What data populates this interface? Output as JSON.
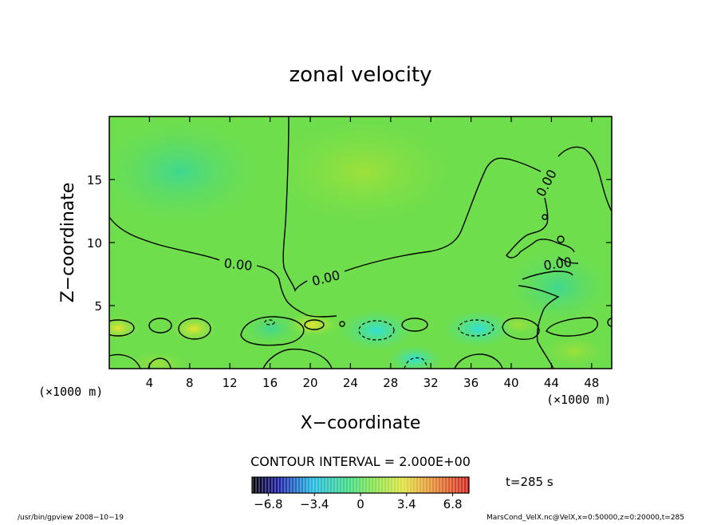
{
  "chart_data": {
    "type": "heatmap",
    "title": "zonal velocity",
    "xlabel": "X−coordinate",
    "ylabel": "Z−coordinate",
    "x_unit": "(×1000 m)",
    "y_unit": "(×1000 m)",
    "xlim": [
      0,
      50
    ],
    "ylim": [
      0,
      20
    ],
    "x_ticks": [
      4,
      8,
      12,
      16,
      20,
      24,
      28,
      32,
      36,
      40,
      44,
      48
    ],
    "y_ticks": [
      5,
      10,
      15
    ],
    "contour_interval_label": "CONTOUR INTERVAL = 2.000E+00",
    "contour_labels": [
      "0.00",
      "0.00",
      "0.00",
      "0.00"
    ],
    "time_label": "t=285 s",
    "colorbar": {
      "range": [
        -8,
        8
      ],
      "tick_values": [
        -6.8,
        -3.4,
        0,
        3.4,
        6.8
      ],
      "tick_labels": [
        "−6.8",
        "−3.4",
        "0",
        "3.4",
        "6.8"
      ]
    },
    "field_samples": [
      {
        "x": 2,
        "z": 3,
        "value": 1.5
      },
      {
        "x": 8,
        "z": 3,
        "value": 1.2
      },
      {
        "x": 26,
        "z": 3,
        "value": -2.2
      },
      {
        "x": 36,
        "z": 3,
        "value": -2.0
      },
      {
        "x": 30,
        "z": 0.5,
        "value": -2.0
      },
      {
        "x": 24,
        "z": 15,
        "value": 0.8
      },
      {
        "x": 8,
        "z": 15,
        "value": -0.8
      }
    ]
  },
  "footer": {
    "left": "/usr/bin/gpview   2008−10−19",
    "right": "MarsCond_VelX.nc@VelX,x=0:50000,z=0:20000,t=285"
  }
}
